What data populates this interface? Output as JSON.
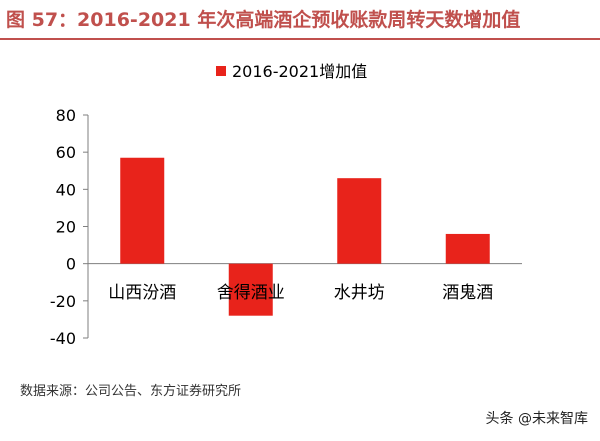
{
  "title": "图 57：2016-2021 年次高端酒企预收账款周转天数增加值",
  "source": "数据来源：公司公告、东方证券研究所",
  "watermark": "头条 @未来智库",
  "colors": {
    "accent": "#c0504d",
    "bar": "#e8231b",
    "axis": "#7f7f7f",
    "text": "#000000"
  },
  "chart_data": {
    "type": "bar",
    "categories": [
      "山西汾酒",
      "舍得酒业",
      "水井坊",
      "酒鬼酒"
    ],
    "series": [
      {
        "name": "2016-2021增加值",
        "values": [
          57,
          -28,
          46,
          16
        ]
      }
    ],
    "ylim": [
      -40,
      80
    ],
    "yticks": [
      -40,
      -20,
      0,
      20,
      40,
      60,
      80
    ],
    "ytick_labels": [
      "-40",
      "-20",
      "0",
      "20",
      "40",
      "60",
      "80"
    ],
    "legend": "top-center",
    "grid": false
  }
}
